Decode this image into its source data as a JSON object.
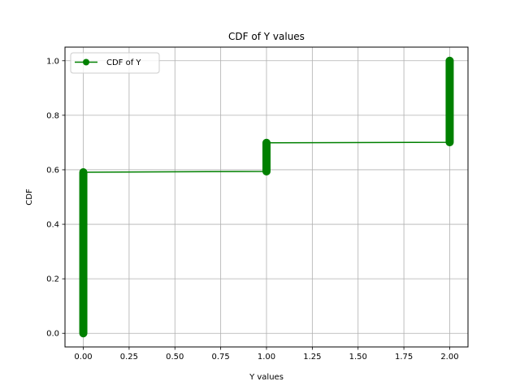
{
  "chart_data": {
    "type": "line",
    "title": "CDF of Y values",
    "xlabel": "Y values",
    "ylabel": "CDF",
    "xlim": [
      -0.1,
      2.1
    ],
    "ylim": [
      -0.05,
      1.05
    ],
    "xticks": [
      "0.00",
      "0.25",
      "0.50",
      "0.75",
      "1.00",
      "1.25",
      "1.50",
      "1.75",
      "2.00"
    ],
    "yticks": [
      "0.0",
      "0.2",
      "0.4",
      "0.6",
      "0.8",
      "1.0"
    ],
    "grid": true,
    "legend_position": "top-left",
    "series": [
      {
        "name": "CDF of Y",
        "color": "#008000",
        "marker": "circle",
        "steps": [
          {
            "x": 0.0,
            "y_from": 0.0,
            "y_to": 0.591
          },
          {
            "x": 1.0,
            "y_from": 0.594,
            "y_to": 0.699
          },
          {
            "x": 2.0,
            "y_from": 0.701,
            "y_to": 1.0
          }
        ]
      }
    ]
  }
}
